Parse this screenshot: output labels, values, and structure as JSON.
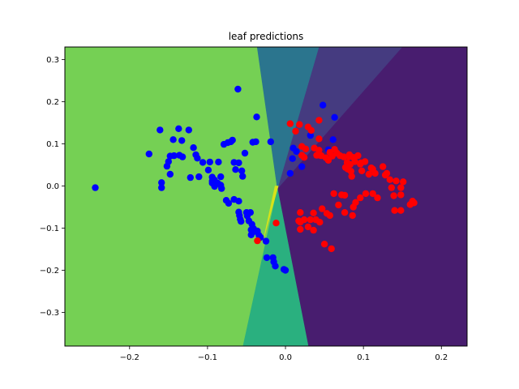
{
  "chart_data": {
    "type": "scatter",
    "title": "leaf predictions",
    "xlabel": "",
    "ylabel": "",
    "xlim": [
      -0.283,
      0.233
    ],
    "ylim": [
      -0.38,
      0.33
    ],
    "grid": false,
    "legend": "none",
    "x_ticks": [
      {
        "value": -0.2,
        "label": "−0.2"
      },
      {
        "value": -0.1,
        "label": "−0.1"
      },
      {
        "value": 0.0,
        "label": "0.0"
      },
      {
        "value": 0.1,
        "label": "0.1"
      },
      {
        "value": 0.2,
        "label": "0.2"
      }
    ],
    "y_ticks": [
      {
        "value": -0.3,
        "label": "−0.3"
      },
      {
        "value": -0.2,
        "label": "−0.2"
      },
      {
        "value": -0.1,
        "label": "−0.1"
      },
      {
        "value": 0.0,
        "label": "0.0"
      },
      {
        "value": 0.1,
        "label": "0.1"
      },
      {
        "value": 0.2,
        "label": "0.2"
      },
      {
        "value": 0.3,
        "label": "0.3"
      }
    ],
    "regions": [
      {
        "name": "region-light-green",
        "color": "#75d054",
        "polygon": [
          [
            -0.283,
            0.33
          ],
          [
            -0.0362,
            0.33
          ],
          [
            -0.0103,
            -0.0063
          ],
          [
            -0.0543,
            -0.38
          ],
          [
            -0.283,
            -0.38
          ]
        ]
      },
      {
        "name": "region-dark-purple",
        "color": "#481d6f",
        "polygon": [
          [
            0.233,
            0.33
          ],
          [
            0.233,
            -0.38
          ],
          [
            0.0291,
            -0.38
          ],
          [
            -0.0103,
            -0.0063
          ],
          [
            0.1496,
            0.33
          ]
        ]
      },
      {
        "name": "region-indigo",
        "color": "#453b80",
        "polygon": [
          [
            0.0427,
            0.33
          ],
          [
            0.1496,
            0.33
          ],
          [
            -0.0103,
            -0.0063
          ]
        ]
      },
      {
        "name": "region-teal-blue",
        "color": "#2b758e",
        "polygon": [
          [
            -0.0362,
            0.33
          ],
          [
            0.0427,
            0.33
          ],
          [
            -0.0103,
            -0.0063
          ]
        ]
      },
      {
        "name": "region-teal-green",
        "color": "#2ab07f",
        "polygon": [
          [
            -0.0103,
            -0.0063
          ],
          [
            0.0291,
            -0.38
          ],
          [
            -0.0543,
            -0.38
          ]
        ]
      },
      {
        "name": "region-yellow",
        "color": "#d7e21a",
        "polygon": [
          [
            -0.0134,
            0.0
          ],
          [
            -0.0093,
            0.0
          ],
          [
            -0.0278,
            -0.124
          ]
        ]
      }
    ],
    "series": [
      {
        "color": "#0000ff",
        "points": [
          [
            -0.244,
            -0.004
          ],
          [
            -0.175,
            0.076
          ],
          [
            -0.161,
            0.133
          ],
          [
            -0.159,
            0.008
          ],
          [
            -0.159,
            -0.004
          ],
          [
            -0.152,
            0.047
          ],
          [
            -0.15,
            0.058
          ],
          [
            -0.148,
            0.071
          ],
          [
            -0.148,
            0.028
          ],
          [
            -0.143,
            0.072
          ],
          [
            -0.144,
            0.11
          ],
          [
            -0.137,
            0.136
          ],
          [
            -0.136,
            0.073
          ],
          [
            -0.132,
            0.069
          ],
          [
            -0.133,
            0.108
          ],
          [
            -0.124,
            0.133
          ],
          [
            -0.122,
            0.02
          ],
          [
            -0.118,
            0.091
          ],
          [
            -0.115,
            0.074
          ],
          [
            -0.113,
            0.066
          ],
          [
            -0.111,
            0.022
          ],
          [
            -0.106,
            0.056
          ],
          [
            -0.097,
            0.057
          ],
          [
            -0.099,
            0.038
          ],
          [
            -0.094,
            0.021
          ],
          [
            -0.094,
            0.012
          ],
          [
            -0.091,
            -0.001
          ],
          [
            -0.094,
            0.007
          ],
          [
            -0.091,
            0.014
          ],
          [
            -0.087,
            0.007
          ],
          [
            -0.086,
            0.057
          ],
          [
            -0.083,
            0.022
          ],
          [
            -0.083,
            0.002
          ],
          [
            -0.082,
            -0.006
          ],
          [
            -0.079,
            0.099
          ],
          [
            -0.074,
            0.103
          ],
          [
            -0.076,
            -0.034
          ],
          [
            -0.073,
            -0.041
          ],
          [
            -0.07,
            0.105
          ],
          [
            -0.068,
            0.109
          ],
          [
            -0.066,
            0.056
          ],
          [
            -0.066,
            -0.032
          ],
          [
            -0.064,
            0.039
          ],
          [
            -0.061,
            0.23
          ],
          [
            -0.06,
            -0.036
          ],
          [
            -0.06,
            0.055
          ],
          [
            -0.06,
            -0.062
          ],
          [
            -0.059,
            -0.07
          ],
          [
            -0.058,
            -0.079
          ],
          [
            -0.057,
            -0.084
          ],
          [
            -0.056,
            0.036
          ],
          [
            -0.055,
            0.023
          ],
          [
            -0.052,
            0.078
          ],
          [
            -0.05,
            -0.063
          ],
          [
            -0.049,
            -0.071
          ],
          [
            -0.047,
            -0.083
          ],
          [
            -0.045,
            -0.063
          ],
          [
            -0.044,
            -0.104
          ],
          [
            -0.044,
            -0.116
          ],
          [
            -0.043,
            -0.091
          ],
          [
            -0.042,
            0.104
          ],
          [
            -0.041,
            -0.101
          ],
          [
            -0.039,
            -0.108
          ],
          [
            -0.038,
            0.105
          ],
          [
            -0.037,
            0.164
          ],
          [
            -0.036,
            -0.107
          ],
          [
            -0.034,
            -0.117
          ],
          [
            -0.032,
            -0.122
          ],
          [
            -0.025,
            -0.131
          ],
          [
            -0.024,
            -0.17
          ],
          [
            -0.019,
            0.105
          ],
          [
            -0.016,
            -0.17
          ],
          [
            -0.015,
            -0.18
          ],
          [
            -0.013,
            -0.19
          ],
          [
            -0.002,
            -0.198
          ],
          [
            0.0,
            -0.2
          ],
          [
            0.01,
            0.09
          ],
          [
            0.014,
            0.082
          ],
          [
            0.009,
            0.065
          ],
          [
            0.006,
            0.03
          ],
          [
            0.021,
            0.046
          ],
          [
            0.032,
            0.12
          ],
          [
            0.048,
            0.192
          ],
          [
            0.055,
            0.086
          ],
          [
            0.061,
            0.11
          ],
          [
            0.063,
            0.163
          ]
        ]
      },
      {
        "color": "#ff0000",
        "points": [
          [
            -0.036,
            -0.13
          ],
          [
            -0.012,
            -0.088
          ],
          [
            0.006,
            0.148
          ],
          [
            0.013,
            0.13
          ],
          [
            0.018,
            0.146
          ],
          [
            0.021,
            0.073
          ],
          [
            0.021,
            0.094
          ],
          [
            0.024,
            0.068
          ],
          [
            0.026,
            0.088
          ],
          [
            0.029,
            0.14
          ],
          [
            0.033,
            0.132
          ],
          [
            0.037,
            0.09
          ],
          [
            0.04,
            0.073
          ],
          [
            0.043,
            0.156
          ],
          [
            0.043,
            0.112
          ],
          [
            0.044,
            0.073
          ],
          [
            0.043,
            0.085
          ],
          [
            0.046,
            0.072
          ],
          [
            0.052,
            0.067
          ],
          [
            0.055,
            0.061
          ],
          [
            0.057,
            0.08
          ],
          [
            0.06,
            0.071
          ],
          [
            0.063,
            0.087
          ],
          [
            0.066,
            0.078
          ],
          [
            0.07,
            0.072
          ],
          [
            0.075,
            0.069
          ],
          [
            0.077,
            0.044
          ],
          [
            0.079,
            0.056
          ],
          [
            0.08,
            0.04
          ],
          [
            0.082,
            0.074
          ],
          [
            0.082,
            0.07
          ],
          [
            0.083,
            0.051
          ],
          [
            0.084,
            0.035
          ],
          [
            0.085,
            0.023
          ],
          [
            0.087,
            0.068
          ],
          [
            0.089,
            0.058
          ],
          [
            0.093,
            0.072
          ],
          [
            0.096,
            0.052
          ],
          [
            0.097,
            0.055
          ],
          [
            0.098,
            0.036
          ],
          [
            0.102,
            0.058
          ],
          [
            0.107,
            0.028
          ],
          [
            0.11,
            0.043
          ],
          [
            0.112,
            0.04
          ],
          [
            0.115,
            0.03
          ],
          [
            0.125,
            0.046
          ],
          [
            0.128,
            0.026
          ],
          [
            0.13,
            0.03
          ],
          [
            0.134,
            0.015
          ],
          [
            0.136,
            -0.004
          ],
          [
            0.139,
            -0.023
          ],
          [
            0.142,
            0.012
          ],
          [
            0.148,
            -0.004
          ],
          [
            0.151,
            0.01
          ],
          [
            0.148,
            -0.021
          ],
          [
            0.16,
            -0.044
          ],
          [
            0.165,
            -0.04
          ],
          [
            0.163,
            -0.036
          ],
          [
            0.14,
            -0.058
          ],
          [
            0.148,
            -0.058
          ],
          [
            0.118,
            -0.028
          ],
          [
            0.112,
            -0.018
          ],
          [
            0.103,
            -0.018
          ],
          [
            0.096,
            -0.028
          ],
          [
            0.09,
            -0.039
          ],
          [
            0.087,
            -0.05
          ],
          [
            0.086,
            -0.07
          ],
          [
            0.076,
            -0.022
          ],
          [
            0.076,
            -0.063
          ],
          [
            0.072,
            -0.021
          ],
          [
            0.068,
            -0.045
          ],
          [
            0.062,
            -0.018
          ],
          [
            0.057,
            -0.07
          ],
          [
            0.053,
            -0.065
          ],
          [
            0.047,
            -0.054
          ],
          [
            0.044,
            -0.086
          ],
          [
            0.039,
            -0.08
          ],
          [
            0.036,
            -0.064
          ],
          [
            0.032,
            -0.08
          ],
          [
            0.029,
            -0.097
          ],
          [
            0.024,
            -0.08
          ],
          [
            0.019,
            -0.063
          ],
          [
            0.017,
            -0.083
          ],
          [
            0.019,
            -0.103
          ],
          [
            0.036,
            -0.105
          ],
          [
            0.05,
            -0.138
          ],
          [
            0.059,
            -0.149
          ],
          [
            0.019,
            -0.086
          ]
        ]
      }
    ]
  }
}
